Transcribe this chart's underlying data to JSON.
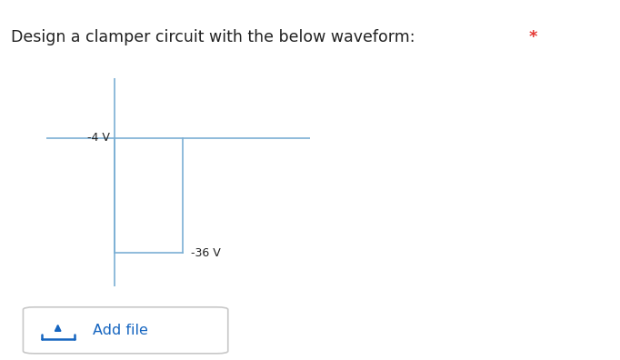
{
  "title": "Design a clamper circuit with the below waveform:",
  "title_color": "#212121",
  "asterisk": "*",
  "asterisk_color": "#e53935",
  "label_neg4": "-4 V",
  "label_neg36": "-36 V",
  "add_file_label": "Add file",
  "add_file_color": "#1565c0",
  "waveform_color": "#7bafd4",
  "bg_color": "#ffffff",
  "fig_width": 6.82,
  "fig_height": 3.96,
  "dpi": 100
}
